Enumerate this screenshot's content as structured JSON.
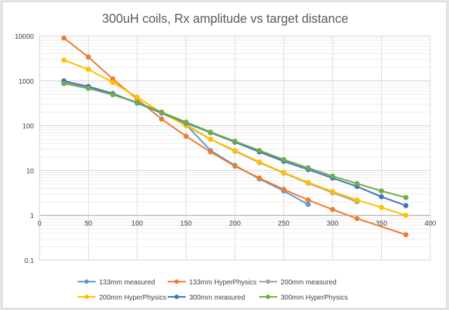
{
  "chart_data": {
    "type": "line",
    "title": "300uH coils, Rx amplitude vs target distance",
    "xlabel": "",
    "ylabel": "",
    "xlim": [
      0,
      400
    ],
    "ylim": [
      0.1,
      10000
    ],
    "yscale": "log",
    "x_ticks": [
      0,
      50,
      100,
      150,
      200,
      250,
      300,
      350,
      400
    ],
    "y_ticks": [
      0.1,
      1,
      10,
      100,
      1000,
      10000
    ],
    "grid": true,
    "legend_position": "bottom",
    "series": [
      {
        "name": "133mm measured",
        "color": "#5b9bd5",
        "x": [
          25,
          50,
          75,
          100,
          125,
          150,
          175,
          200,
          225,
          250,
          275
        ],
        "y": [
          1000,
          720,
          500,
          320,
          190,
          105,
          28,
          13,
          6.5,
          3.5,
          1.75
        ]
      },
      {
        "name": "133mm HyperPhysics",
        "color": "#ed7d31",
        "x": [
          25,
          50,
          75,
          100,
          125,
          150,
          175,
          200,
          225,
          250,
          275,
          300,
          325,
          375
        ],
        "y": [
          9000,
          3400,
          1100,
          390,
          140,
          58,
          26,
          12.5,
          6.8,
          3.8,
          2.2,
          1.35,
          0.85,
          0.37
        ]
      },
      {
        "name": "200mm measured",
        "color": "#a5a5a5",
        "x": [
          25,
          50,
          75,
          100,
          125,
          150,
          175,
          200,
          225,
          250,
          275,
          300,
          325
        ],
        "y": [
          900,
          700,
          500,
          330,
          200,
          105,
          50,
          27,
          15,
          8.8,
          5.2,
          3.2,
          2.0
        ]
      },
      {
        "name": "200mm HyperPhysics",
        "color": "#ffc000",
        "x": [
          25,
          50,
          75,
          100,
          125,
          150,
          175,
          200,
          225,
          250,
          275,
          300,
          325,
          350,
          375
        ],
        "y": [
          2900,
          1800,
          920,
          430,
          195,
          100,
          50,
          28,
          15.5,
          9.0,
          5.4,
          3.4,
          2.2,
          1.5,
          1.0
        ]
      },
      {
        "name": "300mm measured",
        "color": "#4472c4",
        "x": [
          25,
          50,
          75,
          100,
          125,
          150,
          175,
          200,
          225,
          250,
          275,
          300,
          325,
          350,
          375
        ],
        "y": [
          980,
          750,
          520,
          320,
          195,
          115,
          70,
          43,
          26,
          16,
          10.5,
          6.8,
          4.4,
          2.6,
          1.65
        ]
      },
      {
        "name": "300mm HyperPhysics",
        "color": "#70ad47",
        "x": [
          25,
          50,
          75,
          100,
          125,
          150,
          175,
          200,
          225,
          250,
          275,
          300,
          325,
          350,
          375
        ],
        "y": [
          870,
          680,
          490,
          330,
          200,
          120,
          72,
          45,
          28,
          17.5,
          11.5,
          7.5,
          5.1,
          3.5,
          2.5
        ]
      }
    ]
  }
}
